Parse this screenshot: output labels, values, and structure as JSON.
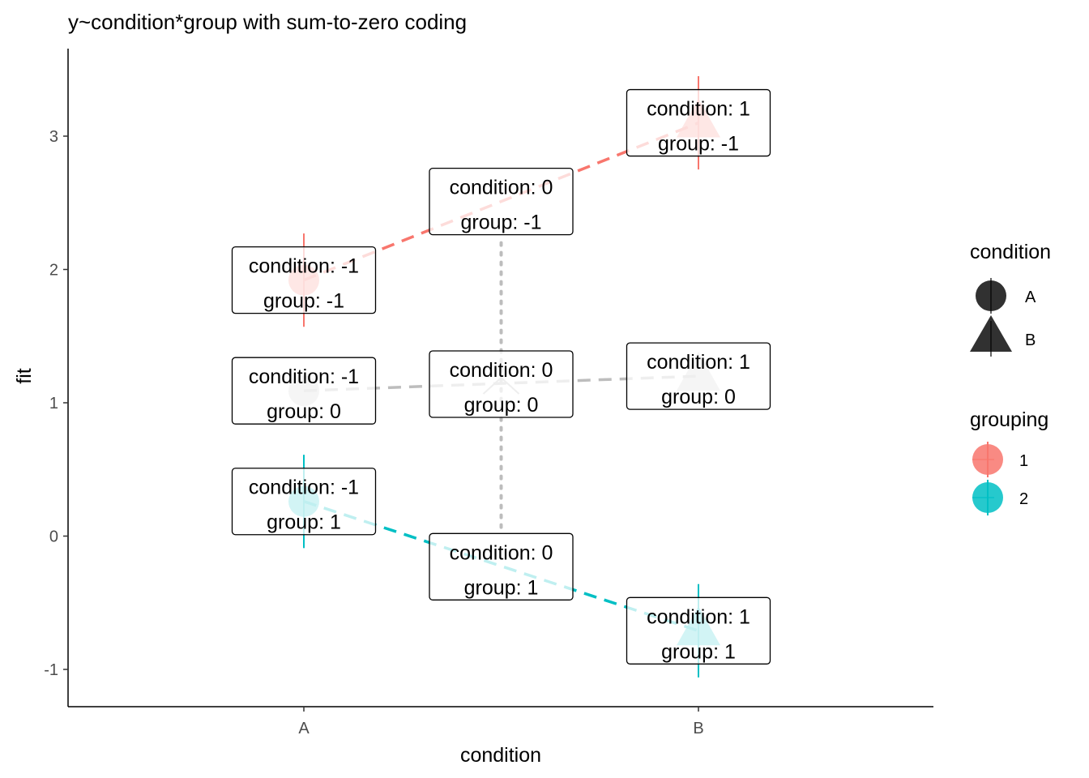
{
  "chart_data": {
    "type": "scatter",
    "title": "y~condition*group with sum-to-zero coding",
    "xlabel": "condition",
    "ylabel": "fit",
    "categories": [
      "A",
      "B"
    ],
    "y_ticks": [
      -1,
      0,
      1,
      2,
      3
    ],
    "ylim": [
      -1.28,
      3.65
    ],
    "grid": false,
    "legend_position": "right",
    "colors": {
      "group_1": "#F8766D",
      "group_2": "#00BFC4",
      "middle": "#bdbdbd",
      "legend_shape": "#262626"
    },
    "legend": {
      "condition": {
        "title": "condition",
        "entries": [
          {
            "label": "A",
            "shape": "circle"
          },
          {
            "label": "B",
            "shape": "triangle"
          }
        ]
      },
      "grouping": {
        "title": "grouping",
        "entries": [
          {
            "label": "1",
            "color": "#F8766D"
          },
          {
            "label": "2",
            "color": "#00BFC4"
          }
        ]
      }
    },
    "series": [
      {
        "name": "1",
        "color": "#F8766D",
        "points": [
          {
            "x": "A",
            "y": 1.92,
            "ymin": 1.57,
            "ymax": 2.27
          },
          {
            "x": "B",
            "y": 3.1,
            "ymin": 2.75,
            "ymax": 3.45
          }
        ]
      },
      {
        "name": "2",
        "color": "#00BFC4",
        "points": [
          {
            "x": "A",
            "y": 0.26,
            "ymin": -0.09,
            "ymax": 0.61
          },
          {
            "x": "B",
            "y": -0.71,
            "ymin": -1.06,
            "ymax": -0.36
          }
        ]
      }
    ],
    "middle_line": {
      "color": "#bdbdbd",
      "points": [
        {
          "x": "A",
          "y": 1.09
        },
        {
          "x": "B",
          "y": 1.2
        }
      ]
    },
    "annotations": [
      {
        "x": 0,
        "y": 1.92,
        "line1": "condition: -1",
        "line2": "group: -1"
      },
      {
        "x": 0,
        "y": 1.09,
        "line1": "condition: -1",
        "line2": "group: 0"
      },
      {
        "x": 0,
        "y": 0.26,
        "line1": "condition: -1",
        "line2": "group: 1"
      },
      {
        "x": 0.5,
        "y": 2.51,
        "line1": "condition: 0",
        "line2": "group: -1"
      },
      {
        "x": 0.5,
        "y": 1.14,
        "line1": "condition: 0",
        "line2": "group: 0"
      },
      {
        "x": 0.5,
        "y": -0.23,
        "line1": "condition: 0",
        "line2": "group: 1"
      },
      {
        "x": 1,
        "y": 3.1,
        "line1": "condition: 1",
        "line2": "group: -1"
      },
      {
        "x": 1,
        "y": 1.2,
        "line1": "condition: 1",
        "line2": "group: 0"
      },
      {
        "x": 1,
        "y": -0.71,
        "line1": "condition: 1",
        "line2": "group: 1"
      }
    ]
  }
}
